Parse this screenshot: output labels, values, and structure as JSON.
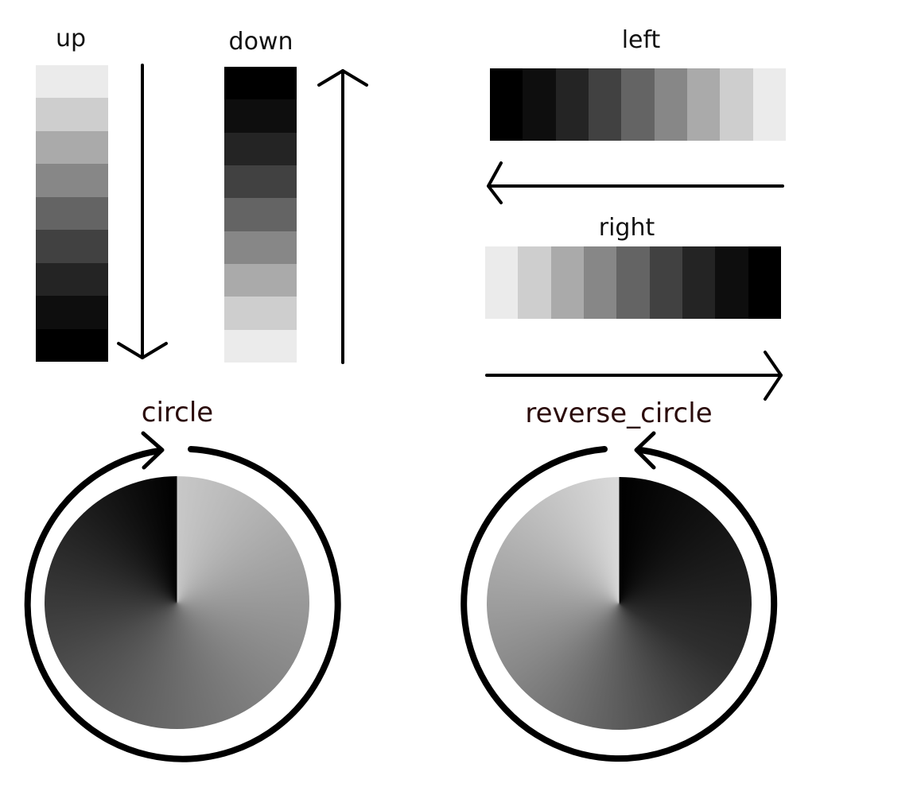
{
  "labels": {
    "up": "up",
    "down": "down",
    "left": "left",
    "right": "right",
    "circle": "circle",
    "reverse_circle": "reverse_circle"
  },
  "strips": {
    "up": [
      "#ebebeb",
      "#cecece",
      "#aaaaaa",
      "#878787",
      "#646464",
      "#414141",
      "#242424",
      "#0e0e0e",
      "#000000"
    ],
    "down": [
      "#000000",
      "#0e0e0e",
      "#242424",
      "#414141",
      "#646464",
      "#878787",
      "#aaaaaa",
      "#cecece",
      "#ebebeb"
    ],
    "left": [
      "#000000",
      "#0e0e0e",
      "#242424",
      "#414141",
      "#646464",
      "#878787",
      "#aaaaaa",
      "#cecece",
      "#ebebeb"
    ],
    "right": [
      "#ebebeb",
      "#cecece",
      "#aaaaaa",
      "#878787",
      "#646464",
      "#414141",
      "#242424",
      "#0e0e0e",
      "#000000"
    ]
  },
  "colors": {
    "stroke": "#000000",
    "label_text": "#111111",
    "circle_label_text": "#2a0a0a",
    "background": "#ffffff"
  },
  "icons": {
    "arrow_up_strip": "arrow-down-icon",
    "arrow_down_strip": "arrow-up-icon",
    "arrow_left_strip": "arrow-left-icon",
    "arrow_right_strip": "arrow-right-icon",
    "circle_arrow": "clockwise-arrow-icon",
    "reverse_circle_arrow": "counterclockwise-arrow-icon"
  }
}
